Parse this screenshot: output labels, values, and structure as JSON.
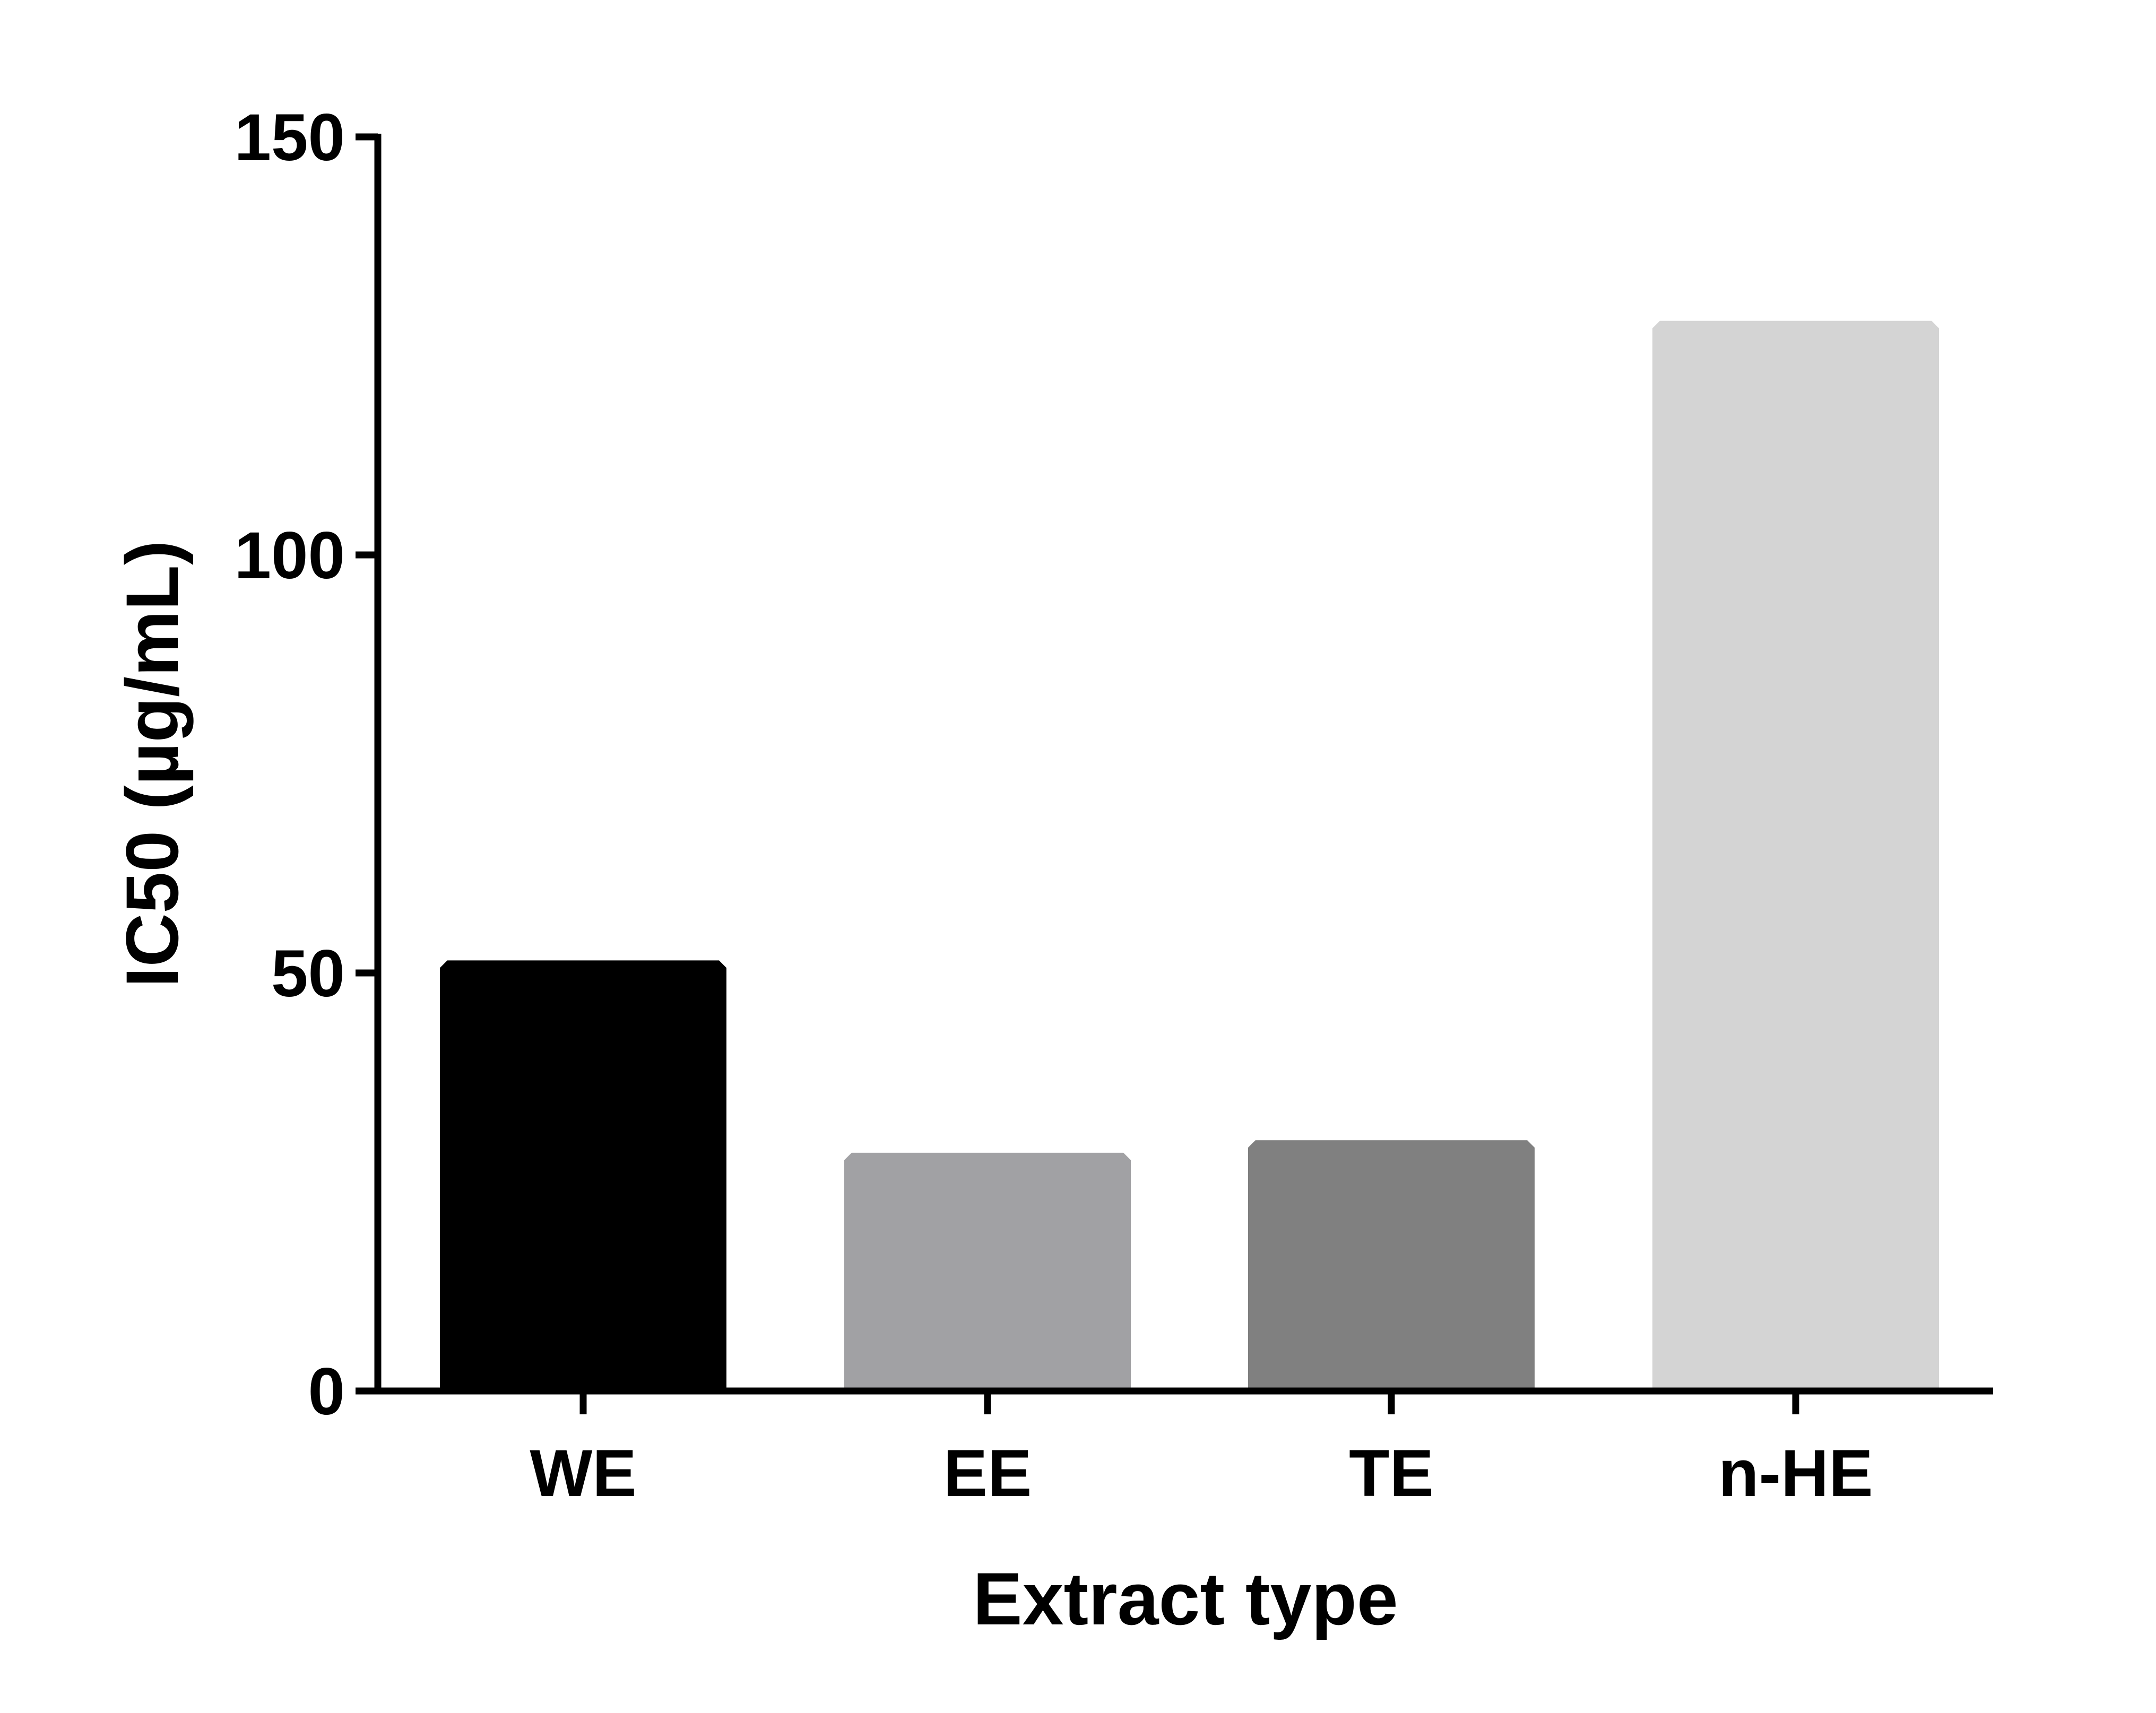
{
  "chart_data": {
    "type": "bar",
    "title": "",
    "xlabel": "Extract type",
    "ylabel": "IC50 (µg/mL)",
    "categories": [
      "WE",
      "EE",
      "TE",
      "n-HE"
    ],
    "values": [
      51.5,
      28.5,
      30.0,
      128.0
    ],
    "colors": [
      "#000000",
      "#a1a1a4",
      "#808080",
      "#d4d4d4"
    ],
    "ylim": [
      0,
      150
    ],
    "yticks": [
      0,
      50,
      100,
      150
    ],
    "ytick_labels": [
      "0",
      "50",
      "100",
      "150"
    ],
    "grid": false,
    "legend": "none"
  }
}
